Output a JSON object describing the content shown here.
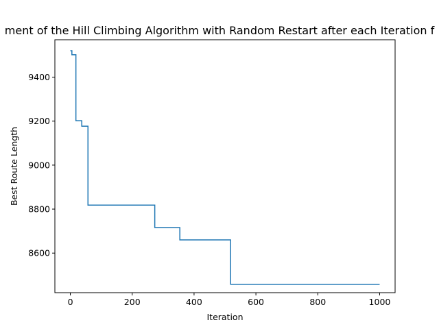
{
  "chart_data": {
    "type": "line",
    "title": "ment of the Hill Climbing Algorithm with Random Restart after each Iteration f",
    "xlabel": "Iteration",
    "ylabel": "Best Route Length",
    "xlim": [
      -50,
      1050
    ],
    "ylim": [
      8420,
      9570
    ],
    "xticks": [
      0,
      200,
      400,
      600,
      800,
      1000
    ],
    "yticks": [
      8600,
      8800,
      9000,
      9200,
      9400
    ],
    "grid": false,
    "legend": "none",
    "series_color": "#1f77b4",
    "series": [
      {
        "step": "post",
        "x": [
          0,
          5,
          18,
          37,
          50,
          57,
          273,
          354,
          518,
          1000
        ],
        "y": [
          9520,
          9502,
          9202,
          9177,
          9177,
          8818,
          8716,
          8660,
          8458,
          8458
        ]
      }
    ]
  }
}
